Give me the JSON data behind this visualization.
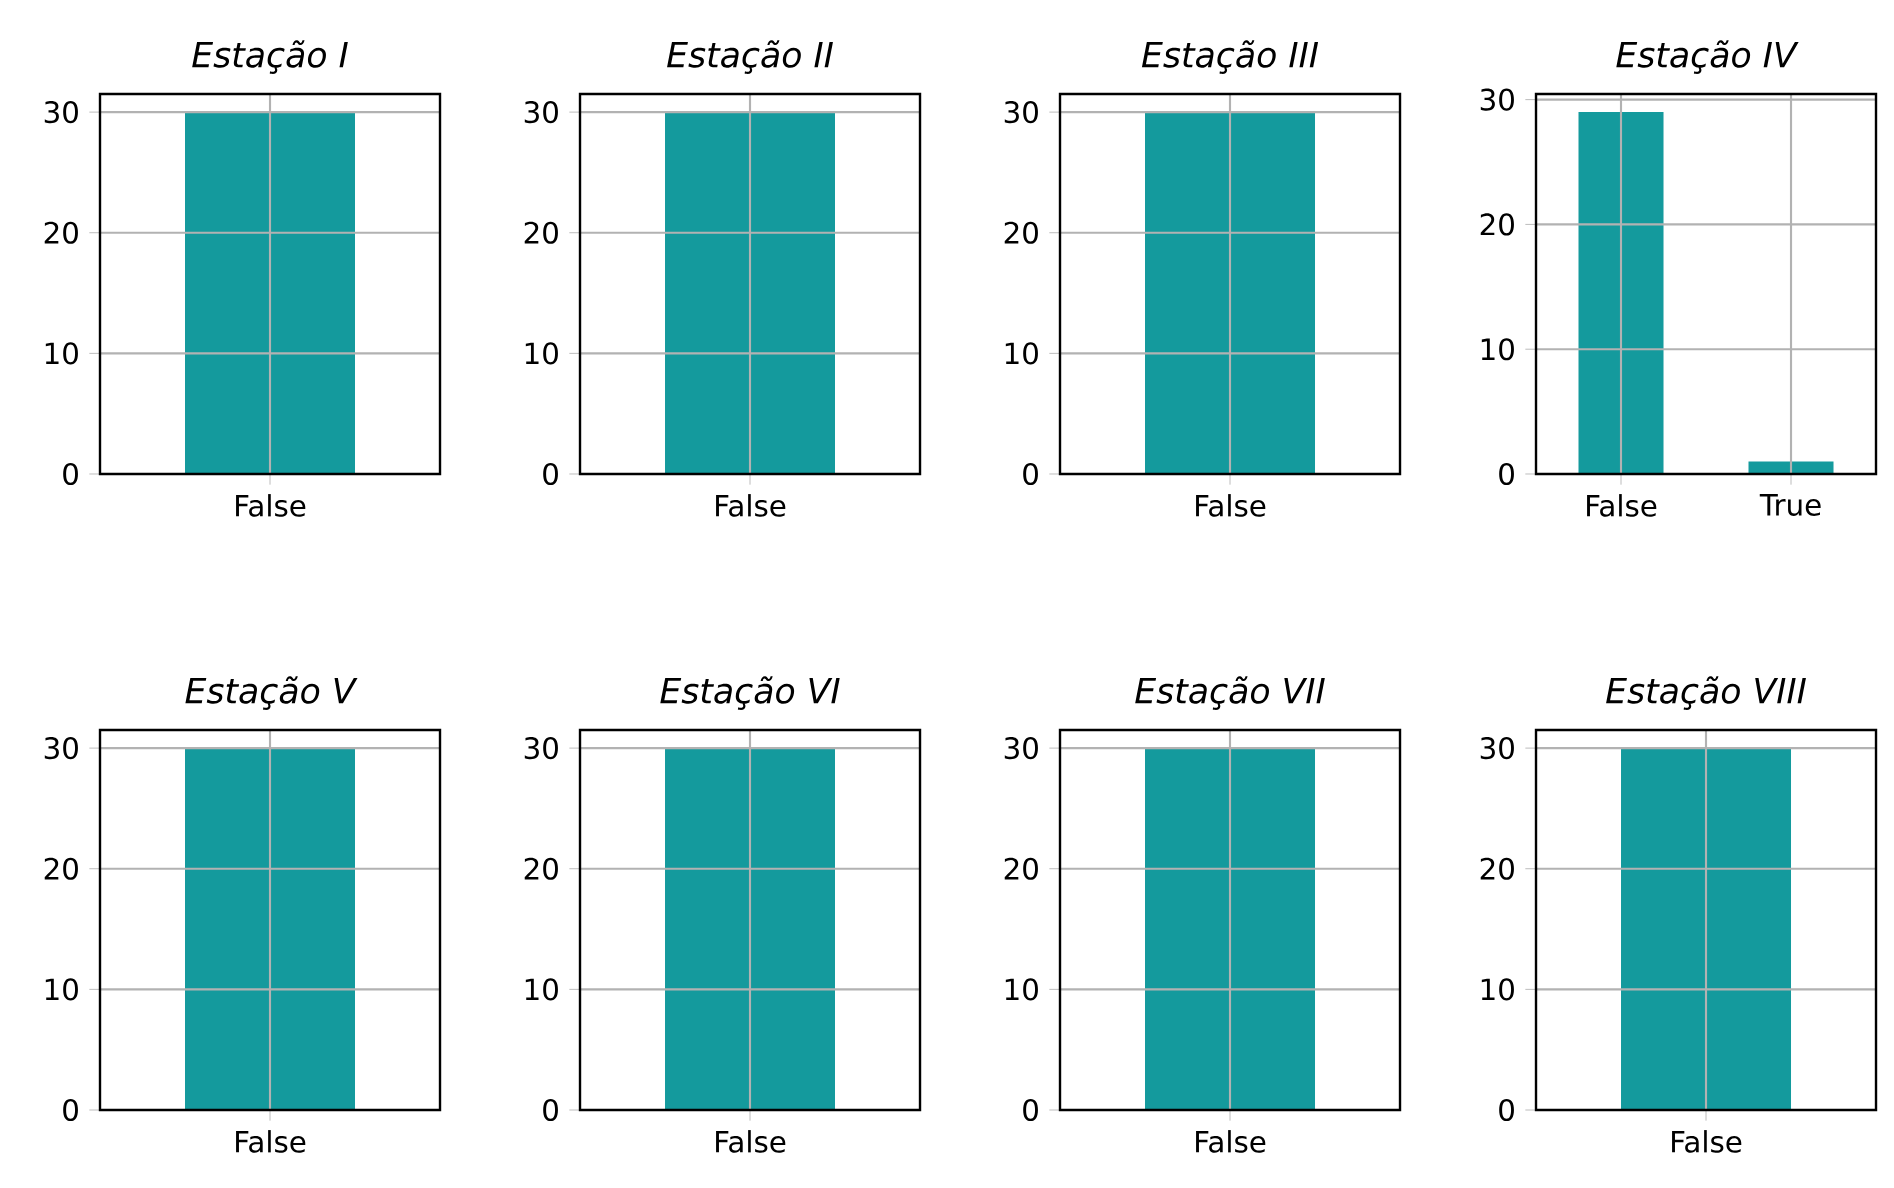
{
  "chart_data": [
    {
      "type": "bar",
      "title": "Estação I",
      "categories": [
        "False"
      ],
      "values": [
        30
      ],
      "color": "#149a9d",
      "ylim": [
        0,
        31.5
      ],
      "yticks": [
        0,
        10,
        20,
        30
      ],
      "grid": true
    },
    {
      "type": "bar",
      "title": "Estação II",
      "categories": [
        "False"
      ],
      "values": [
        30
      ],
      "color": "#149a9d",
      "ylim": [
        0,
        31.5
      ],
      "yticks": [
        0,
        10,
        20,
        30
      ],
      "grid": true
    },
    {
      "type": "bar",
      "title": "Estação III",
      "categories": [
        "False"
      ],
      "values": [
        30
      ],
      "color": "#149a9d",
      "ylim": [
        0,
        31.5
      ],
      "yticks": [
        0,
        10,
        20,
        30
      ],
      "grid": true
    },
    {
      "type": "bar",
      "title": "Estação IV",
      "categories": [
        "False",
        "True"
      ],
      "values": [
        29,
        1
      ],
      "color": "#149a9d",
      "ylim": [
        0,
        30.45
      ],
      "yticks": [
        0,
        10,
        20,
        30
      ],
      "grid": true
    },
    {
      "type": "bar",
      "title": "Estação V",
      "categories": [
        "False"
      ],
      "values": [
        30
      ],
      "color": "#149a9d",
      "ylim": [
        0,
        31.5
      ],
      "yticks": [
        0,
        10,
        20,
        30
      ],
      "grid": true
    },
    {
      "type": "bar",
      "title": "Estação VI",
      "categories": [
        "False"
      ],
      "values": [
        30
      ],
      "color": "#149a9d",
      "ylim": [
        0,
        31.5
      ],
      "yticks": [
        0,
        10,
        20,
        30
      ],
      "grid": true
    },
    {
      "type": "bar",
      "title": "Estação VII",
      "categories": [
        "False"
      ],
      "values": [
        30
      ],
      "color": "#149a9d",
      "ylim": [
        0,
        31.5
      ],
      "yticks": [
        0,
        10,
        20,
        30
      ],
      "grid": true
    },
    {
      "type": "bar",
      "title": "Estação VIII",
      "categories": [
        "False"
      ],
      "values": [
        30
      ],
      "color": "#149a9d",
      "ylim": [
        0,
        31.5
      ],
      "yticks": [
        0,
        10,
        20,
        30
      ],
      "grid": true
    }
  ]
}
